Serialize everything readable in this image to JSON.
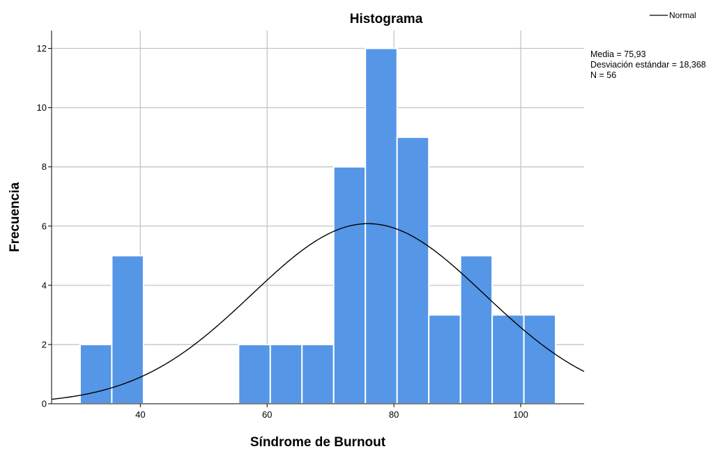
{
  "chart_data": {
    "type": "bar",
    "title": "Histograma",
    "xlabel": "Síndrome de Burnout",
    "ylabel": "Frecuencia",
    "xlim": [
      26,
      110
    ],
    "ylim": [
      0,
      12.6
    ],
    "x_ticks": [
      40,
      60,
      80,
      100
    ],
    "y_ticks": [
      0,
      2,
      4,
      6,
      8,
      10,
      12
    ],
    "bin_width": 5,
    "bins": [
      {
        "start": 30.5,
        "end": 35.5,
        "count": 2
      },
      {
        "start": 35.5,
        "end": 40.5,
        "count": 5
      },
      {
        "start": 40.5,
        "end": 45.5,
        "count": 0
      },
      {
        "start": 45.5,
        "end": 50.5,
        "count": 0
      },
      {
        "start": 50.5,
        "end": 55.5,
        "count": 0
      },
      {
        "start": 55.5,
        "end": 60.5,
        "count": 2
      },
      {
        "start": 60.5,
        "end": 65.5,
        "count": 2
      },
      {
        "start": 65.5,
        "end": 70.5,
        "count": 2
      },
      {
        "start": 70.5,
        "end": 75.5,
        "count": 8
      },
      {
        "start": 75.5,
        "end": 80.5,
        "count": 12
      },
      {
        "start": 80.5,
        "end": 85.5,
        "count": 9
      },
      {
        "start": 85.5,
        "end": 90.5,
        "count": 3
      },
      {
        "start": 90.5,
        "end": 95.5,
        "count": 5
      },
      {
        "start": 95.5,
        "end": 100.5,
        "count": 3
      },
      {
        "start": 100.5,
        "end": 105.5,
        "count": 3
      }
    ],
    "bar_color": "#5596e6",
    "curve_color": "#000000",
    "grid": true,
    "legend": {
      "placement": "top-right",
      "entries": [
        {
          "label": "Normal",
          "type": "line"
        }
      ]
    },
    "normal_curve": {
      "mean": 75.93,
      "sd": 18.368,
      "n": 56
    },
    "stats_text": [
      "Media = 75,93",
      "Desviación estándar = 18,368",
      "N = 56"
    ]
  }
}
